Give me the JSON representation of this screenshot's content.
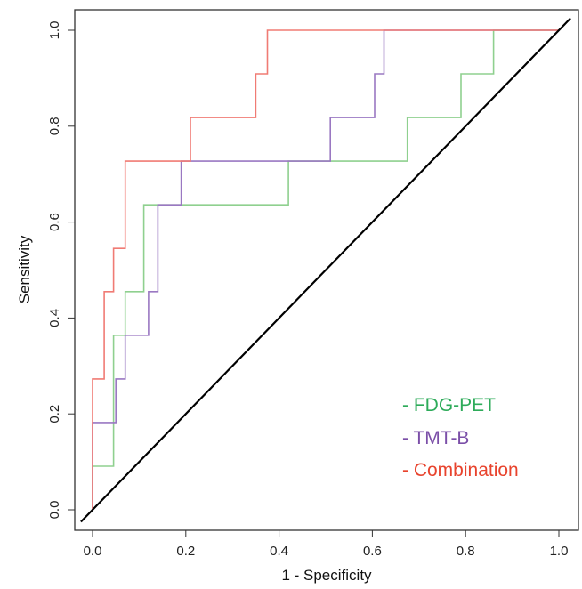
{
  "chart_data": {
    "type": "line",
    "title": "",
    "xlabel": "1 - Specificity",
    "ylabel": "Sensitivity",
    "xlim": [
      0,
      1
    ],
    "ylim": [
      0,
      1
    ],
    "xticks": [
      "0.0",
      "0.2",
      "0.4",
      "0.6",
      "0.8",
      "1.0"
    ],
    "yticks": [
      "0.0",
      "0.2",
      "0.4",
      "0.6",
      "0.8",
      "1.0"
    ],
    "grid": false,
    "legend_position": "bottom-right",
    "reference_line": {
      "x": [
        0,
        1
      ],
      "y": [
        0,
        1
      ],
      "color": "#000000"
    },
    "series": [
      {
        "name": "FDG-PET",
        "color": "#2eab5a",
        "line_color": "#8fd08f",
        "x": [
          0,
          0,
          0.045,
          0.045,
          0.07,
          0.07,
          0.11,
          0.11,
          0.42,
          0.42,
          0.675,
          0.675,
          0.79,
          0.79,
          0.86,
          0.86,
          1.0
        ],
        "y": [
          0,
          0.091,
          0.091,
          0.364,
          0.364,
          0.455,
          0.455,
          0.636,
          0.636,
          0.727,
          0.727,
          0.818,
          0.818,
          0.909,
          0.909,
          1.0,
          1.0
        ]
      },
      {
        "name": "TMT-B",
        "color": "#7b4fa8",
        "line_color": "#9a78c2",
        "x": [
          0,
          0,
          0.05,
          0.05,
          0.07,
          0.07,
          0.12,
          0.12,
          0.14,
          0.14,
          0.19,
          0.19,
          0.51,
          0.51,
          0.605,
          0.605,
          0.625,
          0.625,
          1.0
        ],
        "y": [
          0,
          0.182,
          0.182,
          0.273,
          0.273,
          0.364,
          0.364,
          0.455,
          0.455,
          0.636,
          0.636,
          0.727,
          0.727,
          0.818,
          0.818,
          0.909,
          0.909,
          1.0,
          1.0
        ]
      },
      {
        "name": "Combination",
        "color": "#e8432d",
        "line_color": "#f07b74",
        "x": [
          0,
          0,
          0.025,
          0.025,
          0.045,
          0.045,
          0.07,
          0.07,
          0.21,
          0.21,
          0.35,
          0.35,
          0.375,
          0.375,
          1.0
        ],
        "y": [
          0,
          0.273,
          0.273,
          0.455,
          0.455,
          0.545,
          0.545,
          0.727,
          0.727,
          0.818,
          0.818,
          0.909,
          0.909,
          1.0,
          1.0
        ]
      }
    ],
    "legend": [
      {
        "name": "FDG-PET",
        "color": "#2eab5a"
      },
      {
        "name": "TMT-B",
        "color": "#7b4fa8"
      },
      {
        "name": "Combination",
        "color": "#e8432d"
      }
    ]
  }
}
